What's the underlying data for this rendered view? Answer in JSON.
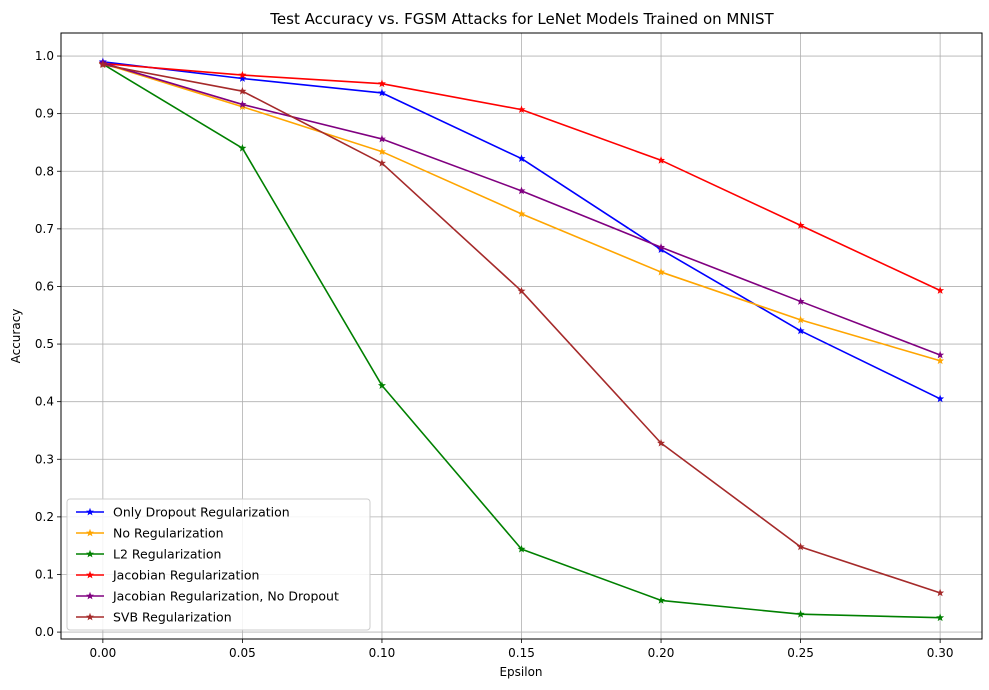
{
  "chart_data": {
    "type": "line",
    "title": "Test Accuracy vs. FGSM Attacks for LeNet Models Trained on MNIST",
    "xlabel": "Epsilon",
    "ylabel": "Accuracy",
    "xlim": [
      -0.015,
      0.315
    ],
    "ylim": [
      -0.012,
      1.04
    ],
    "x": [
      0.0,
      0.05,
      0.1,
      0.15,
      0.2,
      0.25,
      0.3
    ],
    "xticks": [
      "0.00",
      "0.05",
      "0.10",
      "0.15",
      "0.20",
      "0.25",
      "0.30"
    ],
    "yticks": [
      "0.0",
      "0.1",
      "0.2",
      "0.3",
      "0.4",
      "0.5",
      "0.6",
      "0.7",
      "0.8",
      "0.9",
      "1.0"
    ],
    "grid": true,
    "legend_position": "lower-left",
    "marker": "star",
    "series": [
      {
        "name": "Only Dropout Regularization",
        "color": "#0000ff",
        "values": [
          0.99,
          0.961,
          0.936,
          0.822,
          0.664,
          0.523,
          0.405
        ]
      },
      {
        "name": "No Regularization",
        "color": "#ffa500",
        "values": [
          0.987,
          0.912,
          0.834,
          0.726,
          0.625,
          0.542,
          0.471
        ]
      },
      {
        "name": "L2 Regularization",
        "color": "#008000",
        "values": [
          0.986,
          0.84,
          0.428,
          0.144,
          0.055,
          0.031,
          0.025
        ]
      },
      {
        "name": "Jacobian Regularization",
        "color": "#ff0000",
        "values": [
          0.987,
          0.967,
          0.952,
          0.907,
          0.819,
          0.706,
          0.593
        ]
      },
      {
        "name": "Jacobian Regularization, No Dropout",
        "color": "#800080",
        "values": [
          0.988,
          0.916,
          0.856,
          0.766,
          0.668,
          0.574,
          0.481
        ]
      },
      {
        "name": "SVB Regularization",
        "color": "#a52a2a",
        "values": [
          0.985,
          0.939,
          0.814,
          0.592,
          0.328,
          0.148,
          0.068
        ]
      }
    ]
  }
}
